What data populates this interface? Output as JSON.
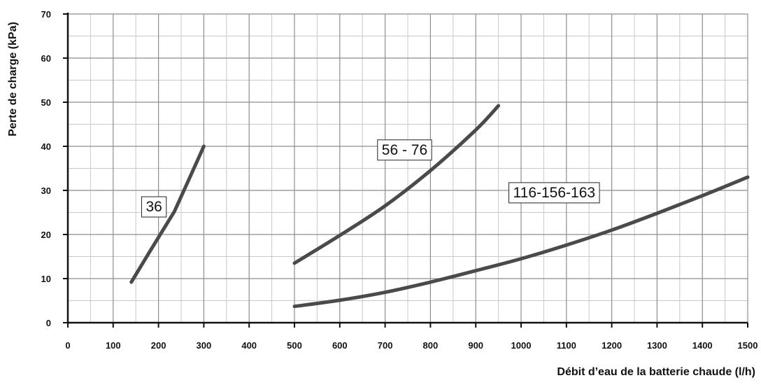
{
  "chart_data": {
    "type": "line",
    "xlabel": "Débit d’eau de la batterie chaude (l/h)",
    "ylabel": "Perte de charge (kPa)",
    "xlim": [
      0,
      1500
    ],
    "ylim": [
      0,
      70
    ],
    "x_ticks": [
      0,
      100,
      200,
      300,
      400,
      500,
      600,
      700,
      800,
      900,
      1000,
      1100,
      1200,
      1300,
      1400,
      1500
    ],
    "y_ticks": [
      0,
      10,
      20,
      30,
      40,
      50,
      60,
      70
    ],
    "x_minor_step": 50,
    "y_minor_step": 5,
    "grid": true,
    "line_color": "#4a4a4a",
    "series": [
      {
        "name": "36",
        "points": [
          [
            140,
            9.2
          ],
          [
            180,
            16
          ],
          [
            235,
            25.2
          ],
          [
            265,
            32
          ],
          [
            300,
            40
          ]
        ]
      },
      {
        "name": "56 - 76",
        "points": [
          [
            500,
            13.5
          ],
          [
            600,
            19.8
          ],
          [
            700,
            26.5
          ],
          [
            800,
            34.5
          ],
          [
            900,
            43.7
          ],
          [
            950,
            49.2
          ]
        ]
      },
      {
        "name": "116-156-163",
        "points": [
          [
            500,
            3.7
          ],
          [
            600,
            5.1
          ],
          [
            700,
            6.9
          ],
          [
            800,
            9.2
          ],
          [
            900,
            11.8
          ],
          [
            1000,
            14.5
          ],
          [
            1100,
            17.6
          ],
          [
            1200,
            21
          ],
          [
            1300,
            24.8
          ],
          [
            1400,
            28.8
          ],
          [
            1500,
            33
          ]
        ]
      }
    ],
    "annotations": [
      {
        "text": "36",
        "series": 0,
        "anchor": [
          190,
          26.5
        ]
      },
      {
        "text": "56 - 76",
        "series": 1,
        "anchor": [
          743,
          39.4
        ]
      },
      {
        "text": "116-156-163",
        "series": 2,
        "anchor": [
          1073,
          29.7
        ]
      }
    ]
  }
}
